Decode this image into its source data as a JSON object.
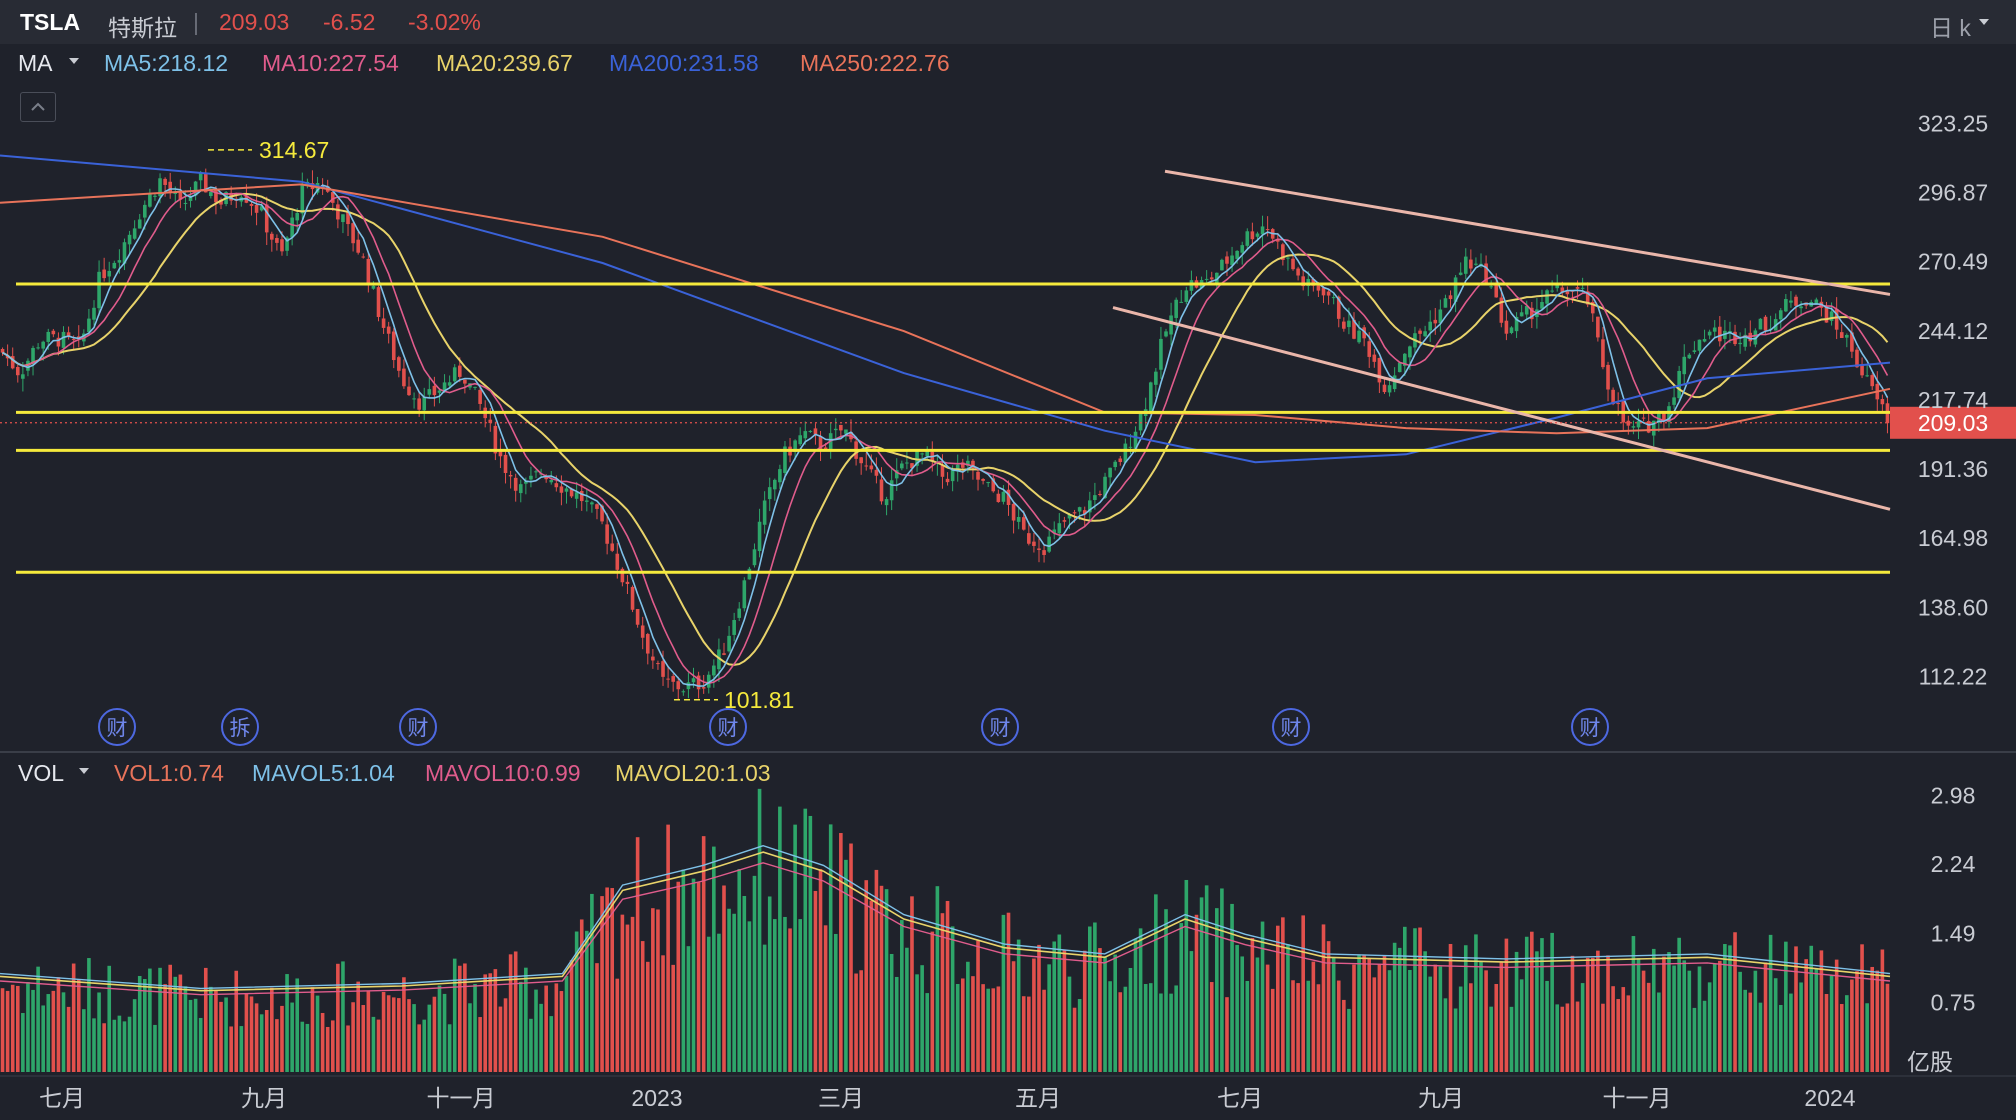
{
  "header": {
    "ticker": "TSLA",
    "name": "特斯拉",
    "separator": "|",
    "price": "209.03",
    "change": "-6.52",
    "change_pct": "-3.02%",
    "period": "日 k",
    "colors": {
      "down": "#e2504c",
      "up": "#2ea66a"
    }
  },
  "ma_legend": {
    "label": "MA",
    "items": [
      {
        "text": "MA5:218.12",
        "color": "#7ec1e8"
      },
      {
        "text": "MA10:227.54",
        "color": "#e05c8c"
      },
      {
        "text": "MA20:239.67",
        "color": "#e8d36a"
      },
      {
        "text": "MA200:231.58",
        "color": "#3a62d8"
      },
      {
        "text": "MA250:222.76",
        "color": "#e8735a"
      }
    ]
  },
  "vol_legend": {
    "label": "VOL",
    "items": [
      {
        "text": "VOL1:0.74",
        "color": "#e8735a"
      },
      {
        "text": "MAVOL5:1.04",
        "color": "#7ec1e8"
      },
      {
        "text": "MAVOL10:0.99",
        "color": "#e05c8c"
      },
      {
        "text": "MAVOL20:1.03",
        "color": "#e8d36a"
      }
    ]
  },
  "chart_data": {
    "type": "candlestick",
    "price_axis": {
      "ticks": [
        "323.25",
        "296.87",
        "270.49",
        "244.12",
        "217.74",
        "191.36",
        "164.98",
        "138.60",
        "112.22"
      ],
      "range": [
        88,
        336
      ]
    },
    "last_price_label": "209.03",
    "volume_axis": {
      "ticks": [
        "2.98",
        "2.24",
        "1.49",
        "0.75"
      ],
      "unit": "亿股",
      "range": [
        0,
        3.2
      ]
    },
    "x_ticks": [
      "七月",
      "九月",
      "十一月",
      "2023",
      "三月",
      "五月",
      "七月",
      "九月",
      "十一月",
      "2024"
    ],
    "annotations": {
      "high": "314.67",
      "low": "101.81"
    },
    "event_markers": [
      "财",
      "拆",
      "财",
      "财",
      "财",
      "财",
      "财"
    ],
    "horizontal_lines": [
      262.0,
      213.0,
      198.5,
      152.0
    ],
    "trendlines": [
      {
        "from": [
          "2023-06",
          305
        ],
        "to": [
          "2024-01",
          258
        ]
      },
      {
        "from": [
          "2023-05",
          253
        ],
        "to": [
          "2024-01",
          176
        ]
      }
    ],
    "close_path": [
      [
        0,
        237
      ],
      [
        20,
        228
      ],
      [
        40,
        241
      ],
      [
        60,
        241
      ],
      [
        80,
        238
      ],
      [
        100,
        265
      ],
      [
        120,
        275
      ],
      [
        140,
        290
      ],
      [
        160,
        302
      ],
      [
        180,
        291
      ],
      [
        200,
        301
      ],
      [
        220,
        293
      ],
      [
        240,
        298
      ],
      [
        260,
        289
      ],
      [
        280,
        272
      ],
      [
        300,
        297
      ],
      [
        320,
        301
      ],
      [
        340,
        287
      ],
      [
        360,
        273
      ],
      [
        380,
        248
      ],
      [
        400,
        226
      ],
      [
        420,
        216
      ],
      [
        440,
        223
      ],
      [
        460,
        229
      ],
      [
        480,
        214
      ],
      [
        500,
        194
      ],
      [
        520,
        183
      ],
      [
        540,
        191
      ],
      [
        560,
        185
      ],
      [
        580,
        180
      ],
      [
        600,
        170
      ],
      [
        620,
        150
      ],
      [
        640,
        128
      ],
      [
        660,
        110
      ],
      [
        680,
        108
      ],
      [
        700,
        110
      ],
      [
        720,
        122
      ],
      [
        740,
        146
      ],
      [
        760,
        175
      ],
      [
        780,
        196
      ],
      [
        800,
        205
      ],
      [
        820,
        200
      ],
      [
        840,
        207
      ],
      [
        860,
        193
      ],
      [
        880,
        181
      ],
      [
        900,
        193
      ],
      [
        920,
        197
      ],
      [
        940,
        188
      ],
      [
        960,
        193
      ],
      [
        980,
        185
      ],
      [
        1000,
        180
      ],
      [
        1020,
        166
      ],
      [
        1040,
        162
      ],
      [
        1060,
        171
      ],
      [
        1080,
        176
      ],
      [
        1100,
        186
      ],
      [
        1120,
        198
      ],
      [
        1140,
        216
      ],
      [
        1160,
        243
      ],
      [
        1180,
        262
      ],
      [
        1200,
        262
      ],
      [
        1220,
        270
      ],
      [
        1240,
        280
      ],
      [
        1260,
        285
      ],
      [
        1280,
        272
      ],
      [
        1300,
        261
      ],
      [
        1320,
        260
      ],
      [
        1340,
        246
      ],
      [
        1360,
        240
      ],
      [
        1380,
        222
      ],
      [
        1400,
        238
      ],
      [
        1420,
        245
      ],
      [
        1440,
        255
      ],
      [
        1460,
        271
      ],
      [
        1480,
        265
      ],
      [
        1500,
        244
      ],
      [
        1520,
        250
      ],
      [
        1540,
        257
      ],
      [
        1560,
        260
      ],
      [
        1580,
        257
      ],
      [
        1600,
        225
      ],
      [
        1620,
        206
      ],
      [
        1640,
        208
      ],
      [
        1660,
        214
      ],
      [
        1680,
        236
      ],
      [
        1700,
        244
      ],
      [
        1720,
        242
      ],
      [
        1740,
        243
      ],
      [
        1760,
        247
      ],
      [
        1780,
        254
      ],
      [
        1800,
        257
      ],
      [
        1820,
        250
      ],
      [
        1840,
        240
      ],
      [
        1860,
        224
      ],
      [
        1882,
        209
      ]
    ],
    "ma200_path": [
      [
        0,
        311
      ],
      [
        300,
        301
      ],
      [
        600,
        270
      ],
      [
        900,
        228
      ],
      [
        1100,
        206
      ],
      [
        1250,
        194
      ],
      [
        1400,
        197
      ],
      [
        1550,
        211
      ],
      [
        1700,
        226
      ],
      [
        1882,
        232
      ]
    ],
    "ma250_path": [
      [
        0,
        293
      ],
      [
        300,
        300
      ],
      [
        600,
        280
      ],
      [
        900,
        244
      ],
      [
        1100,
        213
      ],
      [
        1250,
        212
      ],
      [
        1400,
        207
      ],
      [
        1550,
        205
      ],
      [
        1700,
        207
      ],
      [
        1882,
        222
      ]
    ],
    "volume_path": [
      [
        0,
        1.0
      ],
      [
        200,
        0.85
      ],
      [
        400,
        0.9
      ],
      [
        560,
        1.0
      ],
      [
        620,
        1.9
      ],
      [
        700,
        2.1
      ],
      [
        760,
        2.3
      ],
      [
        820,
        2.1
      ],
      [
        900,
        1.6
      ],
      [
        1000,
        1.3
      ],
      [
        1100,
        1.2
      ],
      [
        1180,
        1.6
      ],
      [
        1240,
        1.4
      ],
      [
        1320,
        1.2
      ],
      [
        1500,
        1.15
      ],
      [
        1700,
        1.2
      ],
      [
        1882,
        1.0
      ]
    ]
  }
}
